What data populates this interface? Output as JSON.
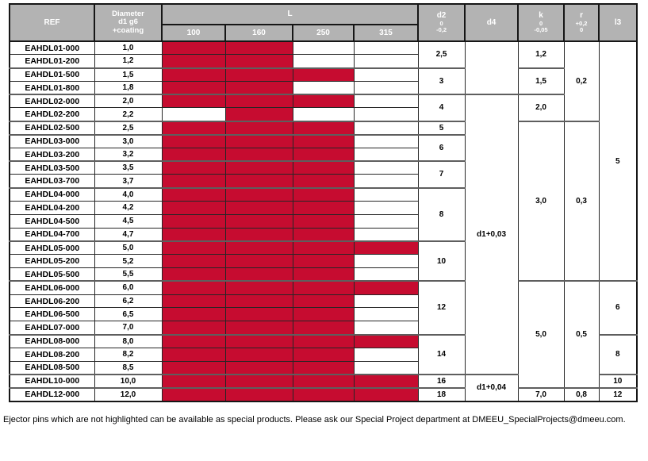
{
  "colors": {
    "highlight": "#c60c30",
    "header_bg": "#b3b3b3",
    "header_text": "#ffffff"
  },
  "table": {
    "header": {
      "ref": "REF",
      "diameter_lines": [
        "Diameter",
        "d1 g6",
        "+coating"
      ],
      "l_label": "L",
      "l_sizes": [
        "100",
        "160",
        "250",
        "315"
      ],
      "d2_lines": [
        "d2",
        "0",
        "-0,2"
      ],
      "d4": "d4",
      "k_lines": [
        "k",
        "0",
        "-0,05"
      ],
      "r_lines": [
        "r",
        "+0,2",
        "0"
      ],
      "l3": "l3"
    },
    "rows": [
      {
        "ref": "EAHDL01-000",
        "diameter": "1,0",
        "lengths": [
          1,
          1,
          0,
          0
        ]
      },
      {
        "ref": "EAHDL01-200",
        "diameter": "1,2",
        "lengths": [
          1,
          1,
          0,
          0
        ]
      },
      {
        "ref": "EAHDL01-500",
        "diameter": "1,5",
        "lengths": [
          1,
          1,
          1,
          0
        ]
      },
      {
        "ref": "EAHDL01-800",
        "diameter": "1,8",
        "lengths": [
          1,
          1,
          0,
          0
        ]
      },
      {
        "ref": "EAHDL02-000",
        "diameter": "2,0",
        "lengths": [
          1,
          1,
          1,
          0
        ]
      },
      {
        "ref": "EAHDL02-200",
        "diameter": "2,2",
        "lengths": [
          0,
          1,
          0,
          0
        ]
      },
      {
        "ref": "EAHDL02-500",
        "diameter": "2,5",
        "lengths": [
          1,
          1,
          1,
          0
        ]
      },
      {
        "ref": "EAHDL03-000",
        "diameter": "3,0",
        "lengths": [
          1,
          1,
          1,
          0
        ]
      },
      {
        "ref": "EAHDL03-200",
        "diameter": "3,2",
        "lengths": [
          1,
          1,
          1,
          0
        ]
      },
      {
        "ref": "EAHDL03-500",
        "diameter": "3,5",
        "lengths": [
          1,
          1,
          1,
          0
        ]
      },
      {
        "ref": "EAHDL03-700",
        "diameter": "3,7",
        "lengths": [
          1,
          1,
          1,
          0
        ]
      },
      {
        "ref": "EAHDL04-000",
        "diameter": "4,0",
        "lengths": [
          1,
          1,
          1,
          0
        ]
      },
      {
        "ref": "EAHDL04-200",
        "diameter": "4,2",
        "lengths": [
          1,
          1,
          1,
          0
        ]
      },
      {
        "ref": "EAHDL04-500",
        "diameter": "4,5",
        "lengths": [
          1,
          1,
          1,
          0
        ]
      },
      {
        "ref": "EAHDL04-700",
        "diameter": "4,7",
        "lengths": [
          1,
          1,
          1,
          0
        ]
      },
      {
        "ref": "EAHDL05-000",
        "diameter": "5,0",
        "lengths": [
          1,
          1,
          1,
          1
        ]
      },
      {
        "ref": "EAHDL05-200",
        "diameter": "5,2",
        "lengths": [
          1,
          1,
          1,
          0
        ]
      },
      {
        "ref": "EAHDL05-500",
        "diameter": "5,5",
        "lengths": [
          1,
          1,
          1,
          0
        ]
      },
      {
        "ref": "EAHDL06-000",
        "diameter": "6,0",
        "lengths": [
          1,
          1,
          1,
          1
        ]
      },
      {
        "ref": "EAHDL06-200",
        "diameter": "6,2",
        "lengths": [
          1,
          1,
          1,
          0
        ]
      },
      {
        "ref": "EAHDL06-500",
        "diameter": "6,5",
        "lengths": [
          1,
          1,
          1,
          0
        ]
      },
      {
        "ref": "EAHDL07-000",
        "diameter": "7,0",
        "lengths": [
          1,
          1,
          1,
          0
        ]
      },
      {
        "ref": "EAHDL08-000",
        "diameter": "8,0",
        "lengths": [
          1,
          1,
          1,
          1
        ]
      },
      {
        "ref": "EAHDL08-200",
        "diameter": "8,2",
        "lengths": [
          1,
          1,
          1,
          0
        ]
      },
      {
        "ref": "EAHDL08-500",
        "diameter": "8,5",
        "lengths": [
          1,
          1,
          1,
          0
        ]
      },
      {
        "ref": "EAHDL10-000",
        "diameter": "10,0",
        "lengths": [
          1,
          1,
          1,
          1
        ]
      },
      {
        "ref": "EAHDL12-000",
        "diameter": "12,0",
        "lengths": [
          1,
          1,
          1,
          1
        ]
      }
    ],
    "merged": {
      "d2": [
        {
          "value": "2,5",
          "start": 0,
          "span": 2
        },
        {
          "value": "3",
          "start": 2,
          "span": 2
        },
        {
          "value": "4",
          "start": 4,
          "span": 2
        },
        {
          "value": "5",
          "start": 6,
          "span": 1
        },
        {
          "value": "6",
          "start": 7,
          "span": 2
        },
        {
          "value": "7",
          "start": 9,
          "span": 2
        },
        {
          "value": "8",
          "start": 11,
          "span": 4
        },
        {
          "value": "10",
          "start": 15,
          "span": 3
        },
        {
          "value": "12",
          "start": 18,
          "span": 4
        },
        {
          "value": "14",
          "start": 22,
          "span": 3
        },
        {
          "value": "16",
          "start": 25,
          "span": 1
        },
        {
          "value": "18",
          "start": 26,
          "span": 1
        }
      ],
      "d4": [
        {
          "value": "",
          "start": 0,
          "span": 4
        },
        {
          "value": "d1+0,03",
          "start": 4,
          "span": 21
        },
        {
          "value": "d1+0,04",
          "start": 25,
          "span": 2
        }
      ],
      "k": [
        {
          "value": "1,2",
          "start": 0,
          "span": 2
        },
        {
          "value": "1,5",
          "start": 2,
          "span": 2
        },
        {
          "value": "2,0",
          "start": 4,
          "span": 2
        },
        {
          "value": "3,0",
          "start": 6,
          "span": 12
        },
        {
          "value": "5,0",
          "start": 18,
          "span": 8
        },
        {
          "value": "7,0",
          "start": 26,
          "span": 1
        }
      ],
      "r": [
        {
          "value": "0,2",
          "start": 0,
          "span": 6
        },
        {
          "value": "0,3",
          "start": 6,
          "span": 12
        },
        {
          "value": "0,5",
          "start": 18,
          "span": 8
        },
        {
          "value": "0,8",
          "start": 26,
          "span": 1
        }
      ],
      "l3": [
        {
          "value": "5",
          "start": 0,
          "span": 18
        },
        {
          "value": "6",
          "start": 18,
          "span": 4
        },
        {
          "value": "8",
          "start": 22,
          "span": 3
        },
        {
          "value": "10",
          "start": 25,
          "span": 1
        },
        {
          "value": "12",
          "start": 26,
          "span": 1
        }
      ]
    }
  },
  "footer": {
    "note": "Ejector pins which are not highlighted can be available as special products. Please ask our Special Project department at DMEEU_SpecialProjects@dmeeu.com."
  }
}
